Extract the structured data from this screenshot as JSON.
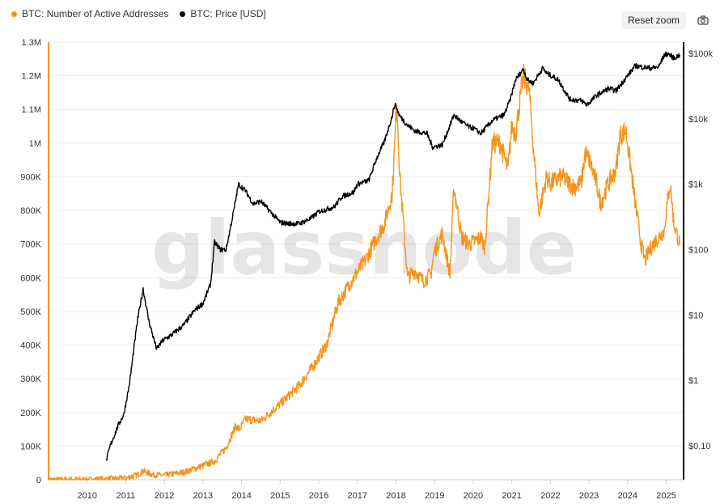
{
  "legend": {
    "items": [
      {
        "label": "BTC: Number of Active Addresses",
        "color": "#f7931a"
      },
      {
        "label": "BTC: Price [USD]",
        "color": "#000000"
      }
    ]
  },
  "toolbar": {
    "reset_zoom_label": "Reset zoom",
    "camera_icon": "camera-icon"
  },
  "watermark": "glassnode",
  "chart_data": {
    "type": "line",
    "grid": "horizontal",
    "legend_position": "top-left",
    "x_ticks": [
      "2010",
      "2011",
      "2012",
      "2013",
      "2014",
      "2015",
      "2016",
      "2017",
      "2018",
      "2019",
      "2020",
      "2021",
      "2022",
      "2023",
      "2024",
      "2025"
    ],
    "xlim": [
      2009.0,
      2025.45
    ],
    "y_left": {
      "ticks": [
        0,
        100000,
        200000,
        300000,
        400000,
        500000,
        600000,
        700000,
        800000,
        900000,
        1000000,
        1100000,
        1200000,
        1300000
      ],
      "tick_labels": [
        "0",
        "100K",
        "200K",
        "300K",
        "400K",
        "500K",
        "600K",
        "700K",
        "800K",
        "900K",
        "1M",
        "1.1M",
        "1.2M",
        "1.3M"
      ],
      "ylim": [
        0,
        1300000
      ]
    },
    "y_right": {
      "scale": "log",
      "ticks": [
        0.1,
        1,
        10,
        100,
        1000,
        10000,
        100000
      ],
      "tick_labels": [
        "$0.10",
        "$1",
        "$10",
        "$100",
        "$1k",
        "$10k",
        "$100k"
      ],
      "ylim": [
        0.03,
        150000
      ]
    },
    "series": [
      {
        "name": "BTC: Number of Active Addresses",
        "axis": "left",
        "color": "#f7931a",
        "x": [
          2009.0,
          2010.0,
          2010.5,
          2011.0,
          2011.3,
          2011.45,
          2011.7,
          2012.0,
          2012.5,
          2013.0,
          2013.3,
          2013.6,
          2013.85,
          2013.95,
          2014.1,
          2014.5,
          2015.0,
          2015.5,
          2015.9,
          2016.2,
          2016.5,
          2016.9,
          2017.2,
          2017.5,
          2017.7,
          2017.9,
          2017.97,
          2018.02,
          2018.1,
          2018.3,
          2018.5,
          2018.7,
          2018.9,
          2019.0,
          2019.2,
          2019.4,
          2019.5,
          2019.7,
          2019.9,
          2020.0,
          2020.2,
          2020.3,
          2020.5,
          2020.7,
          2020.9,
          2021.0,
          2021.1,
          2021.3,
          2021.45,
          2021.55,
          2021.7,
          2021.9,
          2022.0,
          2022.3,
          2022.6,
          2022.8,
          2022.9,
          2023.0,
          2023.2,
          2023.3,
          2023.5,
          2023.7,
          2023.8,
          2023.95,
          2024.0,
          2024.2,
          2024.35,
          2024.45,
          2024.6,
          2024.8,
          2024.95,
          2025.0,
          2025.1,
          2025.2,
          2025.35
        ],
        "values": [
          0,
          500,
          2000,
          5000,
          14000,
          26000,
          15000,
          13000,
          22000,
          42000,
          55000,
          95000,
          160000,
          150000,
          180000,
          175000,
          225000,
          280000,
          345000,
          400000,
          525000,
          600000,
          650000,
          720000,
          760000,
          850000,
          1000000,
          1130000,
          900000,
          600000,
          620000,
          590000,
          610000,
          680000,
          730000,
          610000,
          870000,
          720000,
          700000,
          705000,
          720000,
          690000,
          1000000,
          1000000,
          920000,
          1050000,
          1030000,
          1200000,
          1160000,
          1000000,
          790000,
          900000,
          880000,
          900000,
          870000,
          880000,
          970000,
          950000,
          880000,
          820000,
          880000,
          920000,
          1020000,
          1040000,
          1000000,
          820000,
          700000,
          650000,
          690000,
          720000,
          740000,
          800000,
          880000,
          760000,
          700000
        ]
      },
      {
        "name": "BTC: Price [USD]",
        "axis": "right",
        "color": "#000000",
        "x": [
          2010.5,
          2010.6,
          2010.8,
          2010.95,
          2011.1,
          2011.3,
          2011.45,
          2011.6,
          2011.8,
          2011.95,
          2012.2,
          2012.5,
          2012.8,
          2013.0,
          2013.2,
          2013.3,
          2013.45,
          2013.6,
          2013.8,
          2013.92,
          2014.1,
          2014.3,
          2014.5,
          2014.8,
          2015.0,
          2015.2,
          2015.5,
          2015.8,
          2016.0,
          2016.4,
          2016.6,
          2016.9,
          2017.0,
          2017.3,
          2017.5,
          2017.7,
          2017.9,
          2017.97,
          2018.1,
          2018.3,
          2018.5,
          2018.8,
          2018.95,
          2019.2,
          2019.4,
          2019.5,
          2019.7,
          2019.9,
          2020.0,
          2020.2,
          2020.5,
          2020.8,
          2020.95,
          2021.1,
          2021.3,
          2021.4,
          2021.55,
          2021.8,
          2021.9,
          2022.2,
          2022.5,
          2022.8,
          2022.95,
          2023.2,
          2023.5,
          2023.7,
          2023.95,
          2024.2,
          2024.4,
          2024.6,
          2024.8,
          2024.95,
          2025.05,
          2025.2,
          2025.35
        ],
        "values": [
          0.06,
          0.1,
          0.2,
          0.3,
          0.9,
          8,
          25,
          8,
          3,
          4,
          5,
          7,
          12,
          15,
          30,
          130,
          100,
          100,
          400,
          1000,
          800,
          500,
          550,
          350,
          260,
          250,
          250,
          300,
          380,
          450,
          650,
          750,
          1000,
          1150,
          2500,
          4500,
          11000,
          17000,
          11000,
          8000,
          6500,
          6000,
          3700,
          4000,
          8000,
          11500,
          9000,
          7500,
          7200,
          6000,
          9500,
          11500,
          19000,
          40000,
          58000,
          40000,
          35000,
          60000,
          50000,
          40000,
          20000,
          19000,
          16500,
          23000,
          29000,
          27000,
          42000,
          65000,
          62000,
          60000,
          62000,
          95000,
          100000,
          85000,
          95000
        ]
      }
    ]
  }
}
